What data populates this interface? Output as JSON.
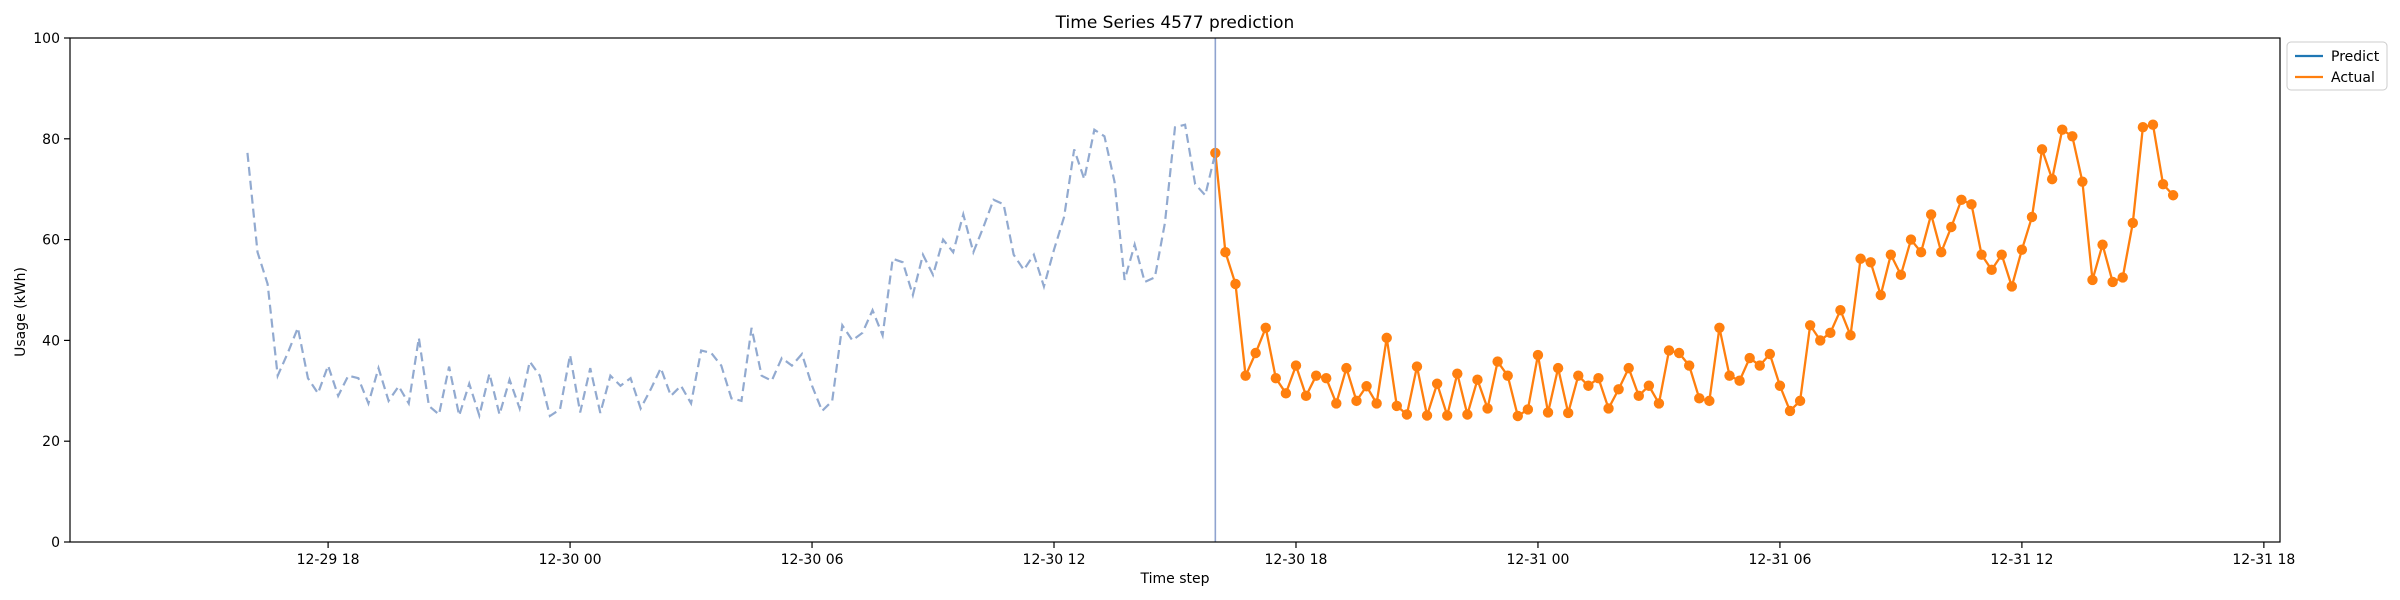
{
  "chart_data": {
    "type": "line",
    "title": "Time Series 4577 prediction",
    "xlabel": "Time step",
    "ylabel": "Usage (kWh)",
    "ylim": [
      0,
      100
    ],
    "xlim": [
      "2012-12-29 11:36",
      "2012-12-31 18:24"
    ],
    "x_tick_labels": [
      "12-29 18",
      "12-30 00",
      "12-30 06",
      "12-30 12",
      "12-30 18",
      "12-31 00",
      "12-31 06",
      "12-31 12",
      "12-31 18"
    ],
    "x_ticks": [
      "2012-12-29 18:00",
      "2012-12-30 00:00",
      "2012-12-30 06:00",
      "2012-12-30 12:00",
      "2012-12-30 18:00",
      "2012-12-31 00:00",
      "2012-12-31 06:00",
      "2012-12-31 12:00",
      "2012-12-31 18:00"
    ],
    "y_ticks": [
      0,
      20,
      40,
      60,
      80,
      100
    ],
    "grid": false,
    "legend": {
      "placement": "upper right, outside plot",
      "entries": [
        "Predict",
        "Actual"
      ]
    },
    "forecast_start": "2012-12-30 16:00",
    "series": [
      {
        "name": "",
        "style": "dashed",
        "color": "#92aad0",
        "x_start": "2012-12-29 16:00",
        "interval_minutes": 15,
        "values": [
          77.2,
          57.5,
          51.2,
          33.0,
          37.5,
          42.5,
          32.5,
          29.5,
          35.0,
          29.0,
          33.0,
          32.5,
          27.5,
          34.5,
          28.0,
          30.9,
          27.5,
          40.5,
          27.0,
          25.3,
          34.8,
          25.1,
          31.4,
          25.1,
          33.4,
          25.3,
          32.2,
          26.5,
          35.8,
          33.0,
          25.0,
          26.3,
          37.1,
          25.7,
          34.5,
          25.6,
          33.0,
          31.0,
          32.5,
          26.5,
          30.3,
          34.5,
          29.0,
          31.0,
          27.5,
          38.0,
          37.5,
          35.0,
          28.5,
          28.0,
          42.5,
          33.0,
          32.0,
          36.5,
          35.0,
          37.3,
          31.0,
          26.0,
          28.0,
          43.0,
          40.0,
          41.5,
          46.0,
          41.0,
          56.2,
          55.5,
          49.0,
          57.0,
          53.0,
          60.0,
          57.5,
          65.0,
          57.5,
          62.5,
          67.9,
          67.0,
          57.0,
          54.0,
          57.0,
          50.7,
          58.0,
          64.5,
          77.9,
          72.0,
          81.8,
          80.5,
          71.5,
          52.0,
          59.0,
          51.6,
          52.5,
          63.3,
          82.3,
          82.8,
          71.0,
          68.8,
          77.2
        ]
      },
      {
        "name": "Actual",
        "style": "solid-with-markers",
        "color": "#ff7f0e",
        "x_start": "2012-12-30 16:00",
        "interval_minutes": 15,
        "values": [
          77.2,
          57.5,
          51.2,
          33.0,
          37.5,
          42.5,
          32.5,
          29.5,
          35.0,
          29.0,
          33.0,
          32.5,
          27.5,
          34.5,
          28.0,
          30.9,
          27.5,
          40.5,
          27.0,
          25.3,
          34.8,
          25.1,
          31.4,
          25.1,
          33.4,
          25.3,
          32.2,
          26.5,
          35.8,
          33.0,
          25.0,
          26.3,
          37.1,
          25.7,
          34.5,
          25.6,
          33.0,
          31.0,
          32.5,
          26.5,
          30.3,
          34.5,
          29.0,
          31.0,
          27.5,
          38.0,
          37.5,
          35.0,
          28.5,
          28.0,
          42.5,
          33.0,
          32.0,
          36.5,
          35.0,
          37.3,
          31.0,
          26.0,
          28.0,
          43.0,
          40.0,
          41.5,
          46.0,
          41.0,
          56.2,
          55.5,
          49.0,
          57.0,
          53.0,
          60.0,
          57.5,
          65.0,
          57.5,
          62.5,
          67.9,
          67.0,
          57.0,
          54.0,
          57.0,
          50.7,
          58.0,
          64.5,
          77.9,
          72.0,
          81.8,
          80.5,
          71.5,
          52.0,
          59.0,
          51.6,
          52.5,
          63.3,
          82.3,
          82.8,
          71.0,
          68.8
        ]
      },
      {
        "name": "Predict",
        "style": "solid",
        "color": "#1f77b4",
        "values": []
      }
    ],
    "colors": {
      "predict": "#1f77b4",
      "actual": "#ff7f0e",
      "history": "#92aad0",
      "forecast_line": "#8fa3cf"
    }
  }
}
